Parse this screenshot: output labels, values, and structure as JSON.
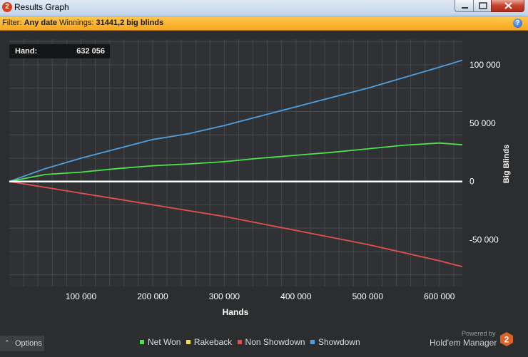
{
  "window": {
    "title": "Results Graph",
    "logo_text": "2"
  },
  "filter": {
    "label": "Filter:",
    "date_value": "Any date",
    "winnings_label": "Winnings:",
    "winnings_value": "31441,2 big blinds",
    "help_text": "?"
  },
  "hand_tracker": {
    "label": "Hand:",
    "value": "632 056"
  },
  "options_button": {
    "label": "Options",
    "icon": "chevron-up-icon"
  },
  "branding": {
    "powered_by": "Powered by",
    "product": "Hold'em Manager",
    "logo_text": "2"
  },
  "colors": {
    "net_won": "#4be34b",
    "rakeback": "#f0e040",
    "non_showdown": "#e25050",
    "showdown": "#4f9ee0",
    "zero_line": "#ffffff",
    "filter_bar": "#f6a51f",
    "background": "#2b2d2f"
  },
  "chart_data": {
    "type": "line",
    "title": "",
    "xlabel": "Hands",
    "ylabel": "Big Blinds",
    "xlim": [
      0,
      632056
    ],
    "ylim": [
      -90000,
      122000
    ],
    "x_ticks": [
      100000,
      200000,
      300000,
      400000,
      500000,
      600000
    ],
    "x_tick_labels": [
      "100 000",
      "200 000",
      "300 000",
      "400 000",
      "500 000",
      "600 000"
    ],
    "y_ticks": [
      -50000,
      0,
      50000,
      100000
    ],
    "y_tick_labels": [
      "-50 000",
      "0",
      "50 000",
      "100 000"
    ],
    "grid": true,
    "legend_position": "bottom",
    "series": [
      {
        "name": "Net Won",
        "color": "#4be34b",
        "x": [
          0,
          50000,
          100000,
          150000,
          200000,
          250000,
          300000,
          350000,
          400000,
          450000,
          500000,
          550000,
          600000,
          632056
        ],
        "y": [
          0,
          6000,
          8000,
          11000,
          13500,
          15000,
          17000,
          20000,
          22500,
          25000,
          28000,
          31000,
          33000,
          31441
        ]
      },
      {
        "name": "Rakeback",
        "color": "#f0e040",
        "x": [
          0,
          632056
        ],
        "y": [
          0,
          0
        ]
      },
      {
        "name": "Non Showdown",
        "color": "#e25050",
        "x": [
          0,
          50000,
          100000,
          150000,
          200000,
          250000,
          300000,
          350000,
          400000,
          450000,
          500000,
          550000,
          600000,
          632056
        ],
        "y": [
          0,
          -5000,
          -10000,
          -15000,
          -20000,
          -25000,
          -30000,
          -36000,
          -42000,
          -48000,
          -54000,
          -61000,
          -68000,
          -73000
        ]
      },
      {
        "name": "Showdown",
        "color": "#4f9ee0",
        "x": [
          0,
          50000,
          100000,
          150000,
          200000,
          250000,
          300000,
          350000,
          400000,
          450000,
          500000,
          550000,
          600000,
          632056
        ],
        "y": [
          0,
          11000,
          20000,
          28000,
          36000,
          41000,
          48000,
          56000,
          64000,
          72000,
          80000,
          89000,
          98000,
          104000
        ]
      }
    ]
  }
}
